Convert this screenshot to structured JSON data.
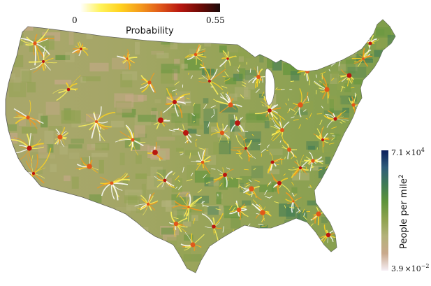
{
  "probability_legend": {
    "title": "Probability",
    "min_label": "0",
    "max_label": "0.55",
    "colors": [
      "#ffffff",
      "#fff35a",
      "#ffd21f",
      "#f49a1c",
      "#e0581a",
      "#b81710",
      "#6e0a06",
      "#1b0a0a"
    ]
  },
  "density_legend": {
    "title_base": "People per mile",
    "title_exp": "2",
    "max_mantissa": "7.1",
    "max_base": "×10",
    "max_exp": "4",
    "min_mantissa": "3.9",
    "min_base": "×10",
    "min_exp": "−2",
    "colors": [
      "#f5eef4",
      "#c9a98c",
      "#b3b27a",
      "#8ea24e",
      "#5f943a",
      "#3f7b55",
      "#2f5c7a",
      "#0b1e5c"
    ]
  },
  "map": {
    "land_base": "#8ea24e",
    "land_west": "#a8a76a",
    "flow_colors": [
      "#ffffff",
      "#fff35a",
      "#ffd21f",
      "#f49a1c",
      "#e0581a",
      "#b81710"
    ]
  }
}
